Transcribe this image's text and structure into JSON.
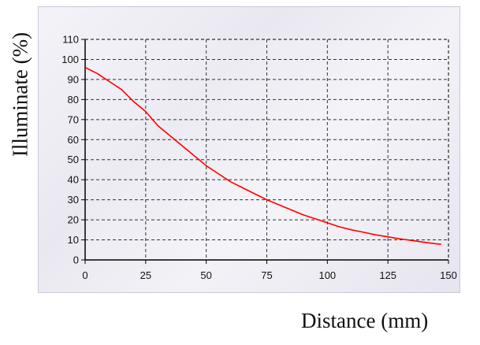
{
  "chart_data": {
    "type": "line",
    "title": "",
    "xlabel": "Distance (mm)",
    "ylabel": "Illuminate (%)",
    "xlim": [
      0,
      150
    ],
    "ylim": [
      0,
      110
    ],
    "xticks": [
      0,
      25,
      50,
      75,
      100,
      125,
      150
    ],
    "yticks": [
      0,
      10,
      20,
      30,
      40,
      50,
      60,
      70,
      80,
      90,
      100,
      110
    ],
    "grid": true,
    "legend": "none",
    "series": [
      {
        "color": "#ff0000",
        "x": [
          0,
          5,
          10,
          15,
          20,
          25,
          30,
          35,
          40,
          45,
          50,
          55,
          60,
          65,
          70,
          75,
          80,
          85,
          90,
          95,
          100,
          105,
          110,
          115,
          120,
          125,
          130,
          135,
          140,
          145,
          147
        ],
        "y": [
          96,
          93,
          89,
          85,
          79,
          74,
          67,
          62,
          57,
          52,
          47,
          43,
          39,
          36,
          33,
          30,
          27.5,
          25,
          22.5,
          20.5,
          18.5,
          16.5,
          15,
          13.8,
          12.5,
          11.5,
          10.5,
          9.7,
          8.8,
          8.0,
          7.8
        ]
      }
    ]
  }
}
